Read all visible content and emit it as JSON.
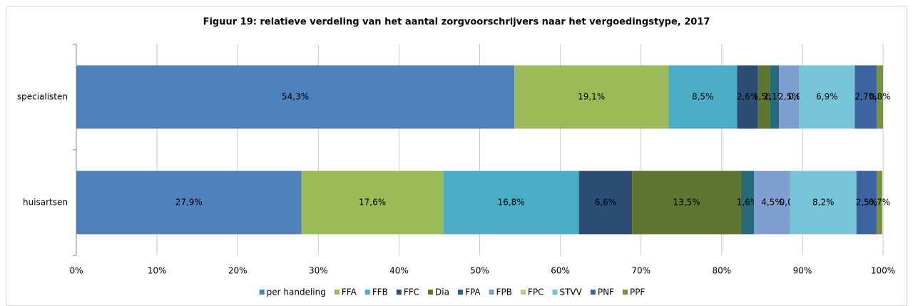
{
  "chart_data": {
    "type": "stacked_barh",
    "title": "Figuur 19: relatieve verdeling van het aantal zorgvoorschrijvers naar het vergoedingstype, 2017",
    "categories": [
      "specialisten",
      "huisartsen"
    ],
    "series": [
      {
        "name": "per handeling",
        "color": "#4f81bd",
        "values": [
          54.3,
          27.9
        ],
        "value_labels": [
          "54,3%",
          "27,9%"
        ]
      },
      {
        "name": "FFA",
        "color": "#9bbb59",
        "values": [
          19.1,
          17.6
        ],
        "value_labels": [
          "19,1%",
          "17,6%"
        ]
      },
      {
        "name": "FFB",
        "color": "#4bacc6",
        "values": [
          8.5,
          16.8
        ],
        "value_labels": [
          "8,5%",
          "16,8%"
        ]
      },
      {
        "name": "FFC",
        "color": "#2c4d75",
        "values": [
          2.6,
          6.6
        ],
        "value_labels": [
          "2,6%",
          "6,6%"
        ]
      },
      {
        "name": "Dia",
        "color": "#5f7530",
        "values": [
          1.5,
          13.5
        ],
        "value_labels": [
          "1,5%",
          "13,5%"
        ]
      },
      {
        "name": "FPA",
        "color": "#276a7c",
        "values": [
          1.1,
          1.6
        ],
        "value_labels": [
          "1,1%",
          "1,6%"
        ]
      },
      {
        "name": "FPB",
        "color": "#7f9fd3",
        "values": [
          2.5,
          4.5
        ],
        "value_labels": [
          "2,5%",
          "4,5%"
        ]
      },
      {
        "name": "FPC",
        "color": "#b3cd83",
        "values": [
          0.0,
          0.0
        ],
        "value_labels": [
          "0,0%",
          "0,0%"
        ]
      },
      {
        "name": "STVV",
        "color": "#77c4d7",
        "values": [
          6.9,
          8.2
        ],
        "value_labels": [
          "6,9%",
          "8,2%"
        ]
      },
      {
        "name": "PNF",
        "color": "#3b64a0",
        "values": [
          2.7,
          2.5
        ],
        "value_labels": [
          "2,7%",
          "2,5%"
        ]
      },
      {
        "name": "PPF",
        "color": "#77933c",
        "values": [
          0.8,
          0.7
        ],
        "value_labels": [
          "0,8%",
          "0,7%"
        ]
      }
    ],
    "xlim": [
      0,
      100
    ],
    "xticks": [
      {
        "value": 0,
        "label": "0%"
      },
      {
        "value": 10,
        "label": "10%"
      },
      {
        "value": 20,
        "label": "20%"
      },
      {
        "value": 30,
        "label": "30%"
      },
      {
        "value": 40,
        "label": "40%"
      },
      {
        "value": 50,
        "label": "50%"
      },
      {
        "value": 60,
        "label": "60%"
      },
      {
        "value": 70,
        "label": "70%"
      },
      {
        "value": 80,
        "label": "80%"
      },
      {
        "value": 90,
        "label": "90%"
      },
      {
        "value": 100,
        "label": "100%"
      }
    ],
    "grid": true,
    "legend": "bottom"
  }
}
